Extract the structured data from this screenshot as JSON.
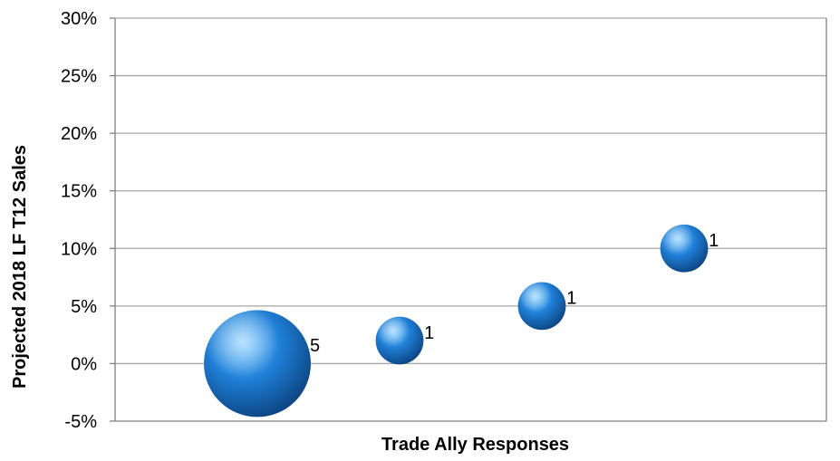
{
  "chart_data": {
    "type": "bubble",
    "title": "",
    "xlabel": "Trade Ally Responses",
    "ylabel": "Projected 2018 LF T12 Sales",
    "ylim": [
      -0.05,
      0.3
    ],
    "yticks": [
      -0.05,
      0,
      0.05,
      0.1,
      0.15,
      0.2,
      0.25,
      0.3
    ],
    "ytick_labels": [
      "-5%",
      "0%",
      "5%",
      "10%",
      "15%",
      "20%",
      "25%",
      "30%"
    ],
    "xlim": [
      0,
      5
    ],
    "grid": "horizontal",
    "series": [
      {
        "points": [
          {
            "x": 1.0,
            "y": 0.0,
            "size": 5,
            "label": "5"
          },
          {
            "x": 2.0,
            "y": 0.02,
            "size": 1,
            "label": "1"
          },
          {
            "x": 3.0,
            "y": 0.05,
            "size": 1,
            "label": "1"
          },
          {
            "x": 4.0,
            "y": 0.1,
            "size": 1,
            "label": "1"
          }
        ]
      }
    ],
    "colors": {
      "bubble_light": "#6ec3ff",
      "bubble_mid": "#1f7fd6",
      "bubble_dark": "#0b3f7a",
      "gridline": "#a6a6a6",
      "frame": "#808080"
    }
  }
}
